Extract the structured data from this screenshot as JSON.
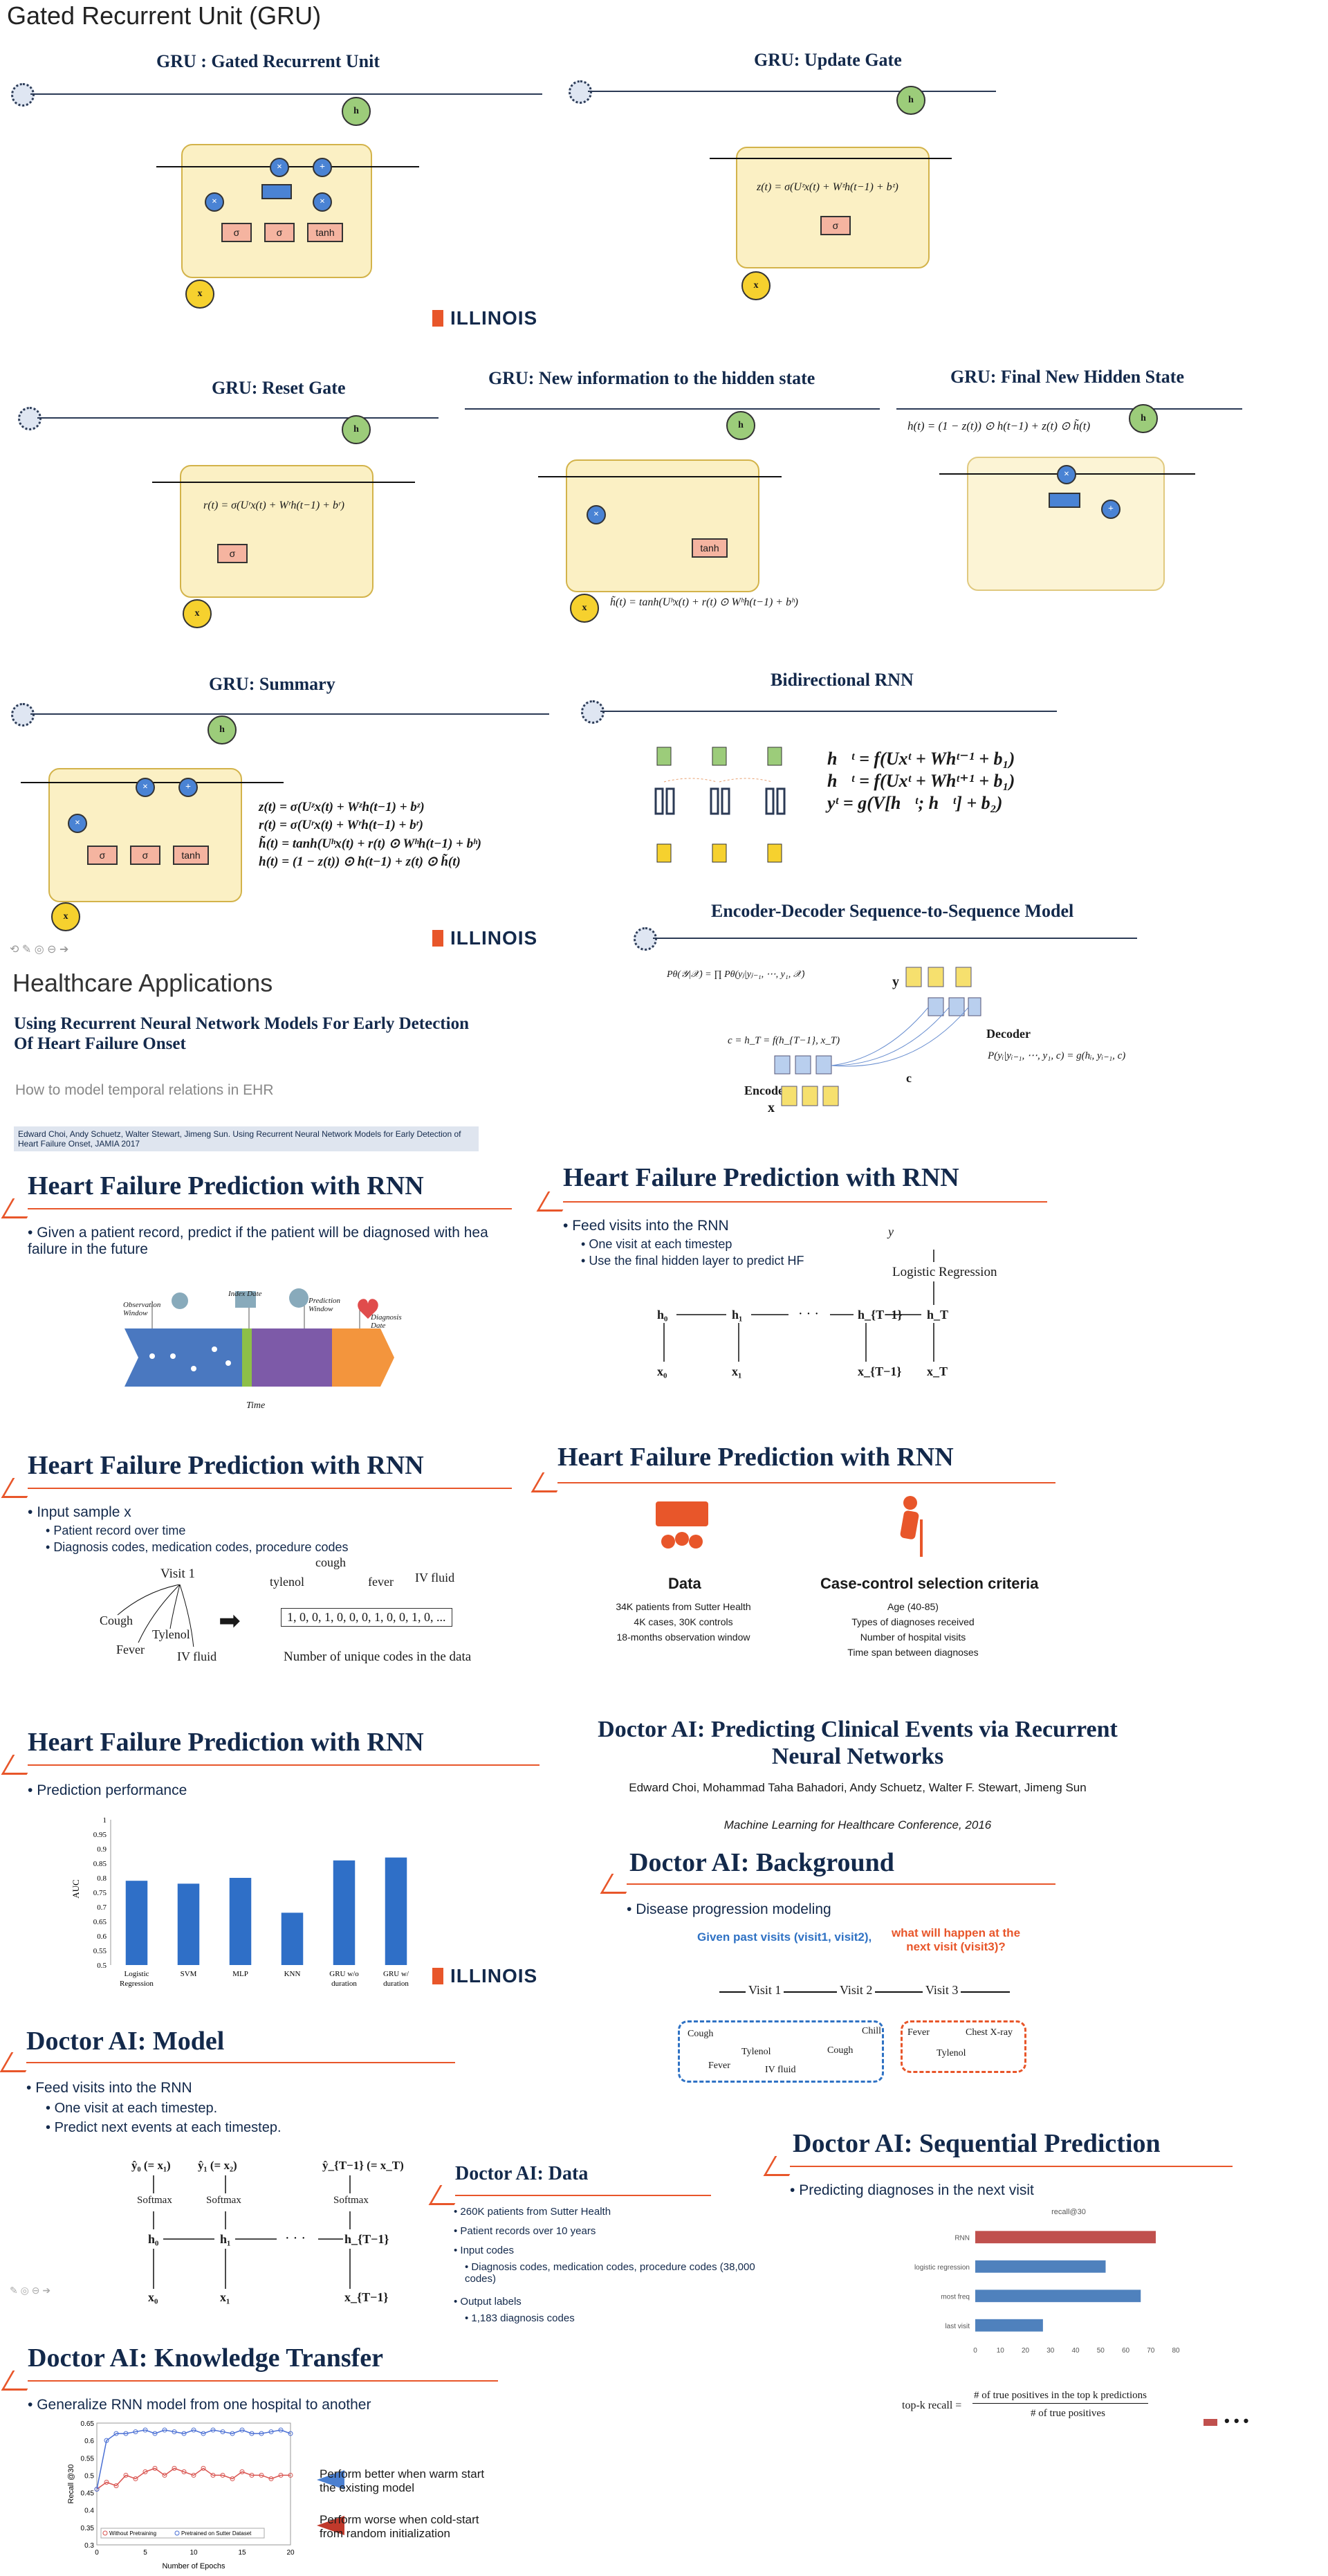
{
  "doc_title": "Gated Recurrent Unit (GRU)",
  "slides": {
    "gru": {
      "title": "GRU : Gated Recurrent Unit"
    },
    "update": {
      "title": "GRU: Update Gate",
      "eq": "z(t) = σ(Uᶻx(t) + Wᶻh(t−1) + bᶻ)"
    },
    "reset": {
      "title": "GRU: Reset Gate",
      "eq": "r(t) = σ(Uʳx(t) + Wʳh(t−1) + bʳ)"
    },
    "newinfo": {
      "title": "GRU: New information to the hidden state",
      "eq": "h̃(t) = tanh(Uʰx(t) + r(t) ⊙ Wʰh(t−1) + bʰ)"
    },
    "final": {
      "title": "GRU: Final New Hidden State",
      "eq": "h(t) = (1 − z(t)) ⊙ h(t−1) + z(t) ⊙ h̃(t)"
    },
    "summary": {
      "title": "GRU: Summary",
      "eqs": [
        "z(t) = σ(Uᶻx(t) + Wᶻh(t−1) + bᶻ)",
        "r(t) = σ(Uʳx(t) + Wʳh(t−1) + bʳ)",
        "h̃(t) = tanh(Uʰx(t) + r(t) ⊙ Wʰh(t−1) + bʰ)",
        "h(t) = (1 − z(t)) ⊙ h(t−1) + z(t) ⊙ h̃(t)"
      ]
    },
    "birnn": {
      "title": "Bidirectional RNN",
      "eqs": [
        "h⃗ᵗ = f(Uxᵗ + Whᵗ⁻¹ + b₁)",
        "h⃖ᵗ = f(Uxᵗ + Whᵗ⁺¹ + b₁)",
        "yᵗ = g(V[h⃗ᵗ; h⃖ᵗ] + b₂)"
      ]
    },
    "seq2seq": {
      "title": "Encoder-Decoder Sequence-to-Sequence Model",
      "p_eq": "Pθ(𝒴|𝒳) = ∏ Pθ(yⱼ|yⱼ₋₁, ⋯, y₁, 𝒳)",
      "c_eq": "c = h_T = f(h_{T−1}, x_T)",
      "dec_eq": "P(yᵢ|yᵢ₋₁, ⋯, y₁, c) = g(hᵢ, yᵢ₋₁, c)",
      "decoder": "Decoder",
      "encoder": "Encoder",
      "c": "c",
      "y": "y",
      "x": "x"
    },
    "hc": {
      "title": "Healthcare Applications",
      "paper": "Using Recurrent Neural Network Models For Early Detection Of Heart Failure Onset",
      "subtitle": "How to model temporal relations in EHR",
      "ref": "Edward Choi, Andy Schuetz, Walter Stewart, Jimeng Sun. Using Recurrent Neural Network Models for Early Detection of Heart Failure Onset, JAMIA 2017"
    },
    "hf1": {
      "title": "Heart Failure Prediction with RNN",
      "bullet": "Given a patient record, predict if the patient will be diagnosed with hea failure in the future",
      "obs": "Observation Window",
      "index": "Index Date",
      "pred": "Prediction Window",
      "diag": "Diagnosis Date",
      "time": "Time"
    },
    "hf2": {
      "title": "Heart Failure Prediction with RNN",
      "bullet": "Feed visits into the RNN",
      "subs": [
        "One visit at each timestep",
        "Use the final hidden layer to predict HF"
      ],
      "lr": "Logistic Regression",
      "y": "y",
      "h": [
        "h₀",
        "h₁",
        "h_{T−1}",
        "h_T"
      ],
      "x": [
        "x₀",
        "x₁",
        "x_{T−1}",
        "x_T"
      ]
    },
    "hf3": {
      "title": "Heart Failure Prediction with RNN",
      "bullet": "Input sample x",
      "subs": [
        "Patient record over time",
        "Diagnosis codes, medication codes, procedure codes"
      ],
      "visit": "Visit 1",
      "codes": [
        "Cough",
        "Tylenol",
        "Fever",
        "IV fluid"
      ],
      "labels": [
        "tylenol",
        "cough",
        "fever",
        "IV fluid"
      ],
      "vector": "1, 0, 0, 1, 0, 0, 0, 1, 0, 0, 1, 0, ...",
      "caption": "Number of unique codes in the data"
    },
    "hf4": {
      "title": "Heart Failure Prediction with RNN",
      "data_h": "Data",
      "data": [
        "34K patients from Sutter Health",
        "4K cases, 30K controls",
        "18-months observation window"
      ],
      "cc_h": "Case-control selection criteria",
      "cc": [
        "Age (40-85)",
        "Types of diagnoses received",
        "Number of hospital visits",
        "Time span between diagnoses"
      ]
    },
    "hf5": {
      "title": "Heart Failure Prediction with RNN",
      "bullet": "Prediction performance",
      "ylabel": "AUC"
    },
    "dai_title": {
      "title": "Doctor AI: Predicting Clinical Events via Recurrent Neural Networks",
      "authors": "Edward Choi, Mohammad Taha Bahadori, Andy Schuetz, Walter F. Stewart, Jimeng Sun",
      "venue": "Machine Learning for Healthcare Conference, 2016"
    },
    "dai_bg": {
      "title": "Doctor AI: Background",
      "bullet": "Disease progression modeling",
      "past": "Given past visits (visit1, visit2),",
      "q": "what will happen at the next visit (visit3)?",
      "visits": [
        "Visit 1",
        "Visit 2",
        "Visit 3"
      ],
      "v1": [
        "Cough",
        "Fever",
        "Tylenol",
        "IV fluid"
      ],
      "v2": [
        "Chill",
        "Cough"
      ],
      "v3": [
        "Fever",
        "Chest X-ray",
        "Tylenol"
      ]
    },
    "dai_model": {
      "title": "Doctor AI: Model",
      "bullet": "Feed visits into the RNN",
      "subs": [
        "One visit at each timestep.",
        "Predict next events at each timestep."
      ],
      "yhat": [
        "ŷ₀ (= x₁)",
        "ŷ₁ (= x₂)",
        "ŷ_{T−1} (= x_T)"
      ],
      "softmax": "Softmax"
    },
    "dai_data": {
      "title": "Doctor AI: Data",
      "items": [
        "260K patients from Sutter Health",
        "Patient records over 10 years",
        "Input codes",
        "Diagnosis codes, medication codes, procedure codes (38,000 codes)",
        "Output labels",
        "1,183 diagnosis codes"
      ]
    },
    "dai_seq": {
      "title": "Doctor AI: Sequential Prediction",
      "bullet": "Predicting diagnoses in the next visit",
      "chart_title": "recall@30",
      "formula_lhs": "top-k recall =",
      "num": "# of true positives in the top k predictions",
      "den": "# of true positives"
    },
    "dai_kt": {
      "title": "Doctor AI: Knowledge Transfer",
      "bullet": "Generalize RNN model from one hospital to another",
      "warm": "Perform better when warm start the existing model",
      "cold": "Perform worse when cold-start from random  initialization",
      "ylabel": "Recall @30",
      "xlabel": "Number of Epochs",
      "legend": [
        "Without Pretraining",
        "Pretrained on Sutter Dataset"
      ]
    }
  },
  "illinois": "ILLINOIS",
  "chart_data": [
    {
      "type": "bar",
      "categories": [
        "Logistic Regression",
        "SVM",
        "MLP",
        "KNN",
        "GRU w/o duration",
        "GRU w/ duration"
      ],
      "values": [
        0.79,
        0.78,
        0.8,
        0.68,
        0.86,
        0.87
      ],
      "ylabel": "AUC",
      "ylim": [
        0.5,
        1
      ],
      "yticks": [
        "0.5",
        "0.55",
        "0.6",
        "0.65",
        "0.7",
        "0.75",
        "0.8",
        "0.85",
        "0.9",
        "0.95",
        "1"
      ]
    },
    {
      "type": "bar",
      "orientation": "horizontal",
      "title": "recall@30",
      "categories": [
        "RNN",
        "logistic regression",
        "most freq",
        "last visit"
      ],
      "values": [
        72,
        52,
        66,
        27
      ],
      "colors": [
        "#c0504d",
        "#4f81bd",
        "#4f81bd",
        "#4f81bd"
      ],
      "xlim": [
        0,
        80
      ],
      "xticks": [
        "0",
        "10",
        "20",
        "30",
        "40",
        "50",
        "60",
        "70",
        "80"
      ]
    },
    {
      "type": "line",
      "ylabel": "Recall @30",
      "xlabel": "Number of Epochs",
      "x": [
        0,
        1,
        2,
        3,
        4,
        5,
        6,
        7,
        8,
        9,
        10,
        11,
        12,
        13,
        14,
        15,
        16,
        17,
        18,
        19,
        20
      ],
      "series": [
        {
          "name": "Without Pretraining",
          "color": "#d9534f",
          "values": [
            0.46,
            0.48,
            0.47,
            0.5,
            0.49,
            0.51,
            0.52,
            0.5,
            0.52,
            0.51,
            0.5,
            0.52,
            0.5,
            0.5,
            0.49,
            0.51,
            0.5,
            0.5,
            0.49,
            0.5,
            0.5
          ]
        },
        {
          "name": "Pretrained on Sutter Dataset",
          "color": "#4a6fd4",
          "values": [
            0.46,
            0.6,
            0.62,
            0.62,
            0.625,
            0.63,
            0.62,
            0.63,
            0.625,
            0.62,
            0.63,
            0.62,
            0.63,
            0.625,
            0.62,
            0.63,
            0.62,
            0.62,
            0.625,
            0.63,
            0.62
          ]
        }
      ],
      "ylim": [
        0.3,
        0.65
      ],
      "xlim": [
        0,
        20
      ],
      "yticks": [
        "0.3",
        "0.35",
        "0.4",
        "0.45",
        "0.5",
        "0.55",
        "0.6",
        "0.65"
      ],
      "xticks": [
        "0",
        "5",
        "10",
        "15",
        "20"
      ]
    }
  ]
}
